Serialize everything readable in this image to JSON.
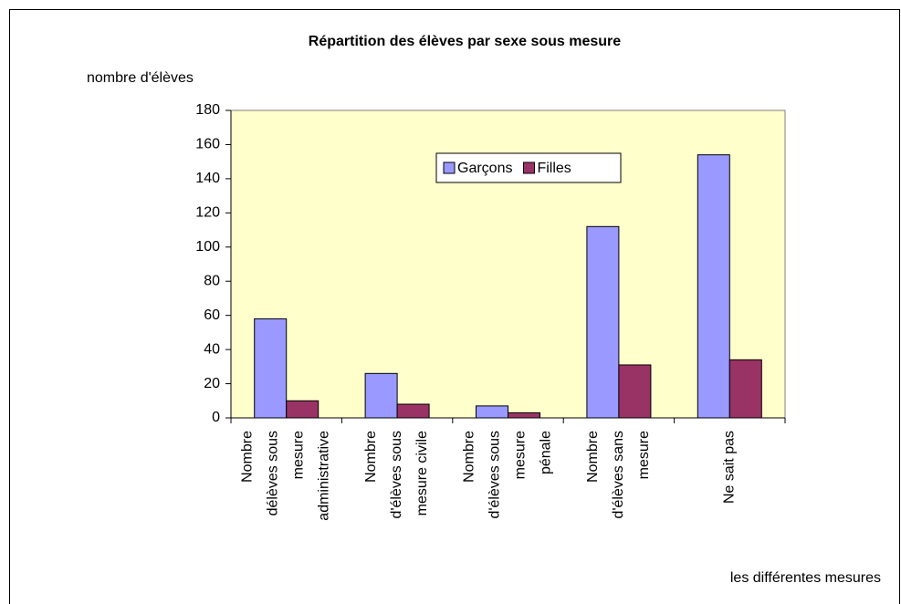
{
  "chart_data": {
    "type": "bar",
    "title": "Répartition des élèves par sexe sous mesure",
    "y_label": "nombre d'élèves",
    "x_label": "les différentes mesures",
    "categories": [
      "Nombre\ndélèves sous\nmesure\nadministrative",
      "Nombre\nd'élèves sous\nmesure civile",
      "Nombre\nd'élèves sous\nmesure\npénale",
      "Nombre\nd'élèves sans\nmesure",
      "Ne sait pas"
    ],
    "series": [
      {
        "name": "Garçons",
        "color": "#9999ff",
        "values": [
          58,
          26,
          7,
          112,
          154
        ]
      },
      {
        "name": "Filles",
        "color": "#993366",
        "values": [
          10,
          8,
          3,
          31,
          34
        ]
      }
    ],
    "ylim": [
      0,
      180
    ],
    "yticks": [
      0,
      20,
      40,
      60,
      80,
      100,
      120,
      140,
      160,
      180
    ],
    "legend": "top"
  }
}
